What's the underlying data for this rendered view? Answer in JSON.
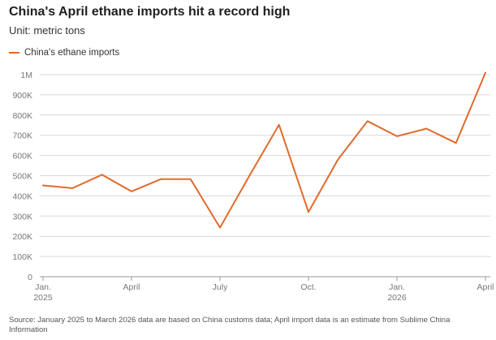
{
  "title": "China's April ethane imports hit a record high",
  "subtitle": "Unit: metric tons",
  "footnote": "Source: January 2025 to March 2026 data are based on China customs data; April import data is an estimate from Sublime China Information",
  "colors": {
    "series": "#e26a2c",
    "grid": "#d9d9d9",
    "axis": "#999999",
    "tick_text": "#777777"
  },
  "chart_data": {
    "type": "line",
    "series": [
      {
        "name": "China's ethane imports",
        "values": [
          452000,
          438000,
          505000,
          422000,
          483000,
          483000,
          243000,
          500000,
          752000,
          320000,
          580000,
          770000,
          695000,
          733000,
          662000,
          1010000
        ]
      }
    ],
    "x": [
      "2025-01",
      "2025-02",
      "2025-03",
      "2025-04",
      "2025-05",
      "2025-06",
      "2025-07",
      "2025-08",
      "2025-09",
      "2025-10",
      "2025-11",
      "2025-12",
      "2026-01",
      "2026-02",
      "2026-03",
      "2026-04"
    ],
    "x_tick_labels": [
      {
        "index": 0,
        "line1": "Jan.",
        "line2": "2025"
      },
      {
        "index": 3,
        "line1": "April",
        "line2": ""
      },
      {
        "index": 6,
        "line1": "July",
        "line2": ""
      },
      {
        "index": 9,
        "line1": "Oct.",
        "line2": ""
      },
      {
        "index": 12,
        "line1": "Jan.",
        "line2": "2026"
      },
      {
        "index": 15,
        "line1": "April",
        "line2": ""
      }
    ],
    "y_ticks": [
      0,
      100000,
      200000,
      300000,
      400000,
      500000,
      600000,
      700000,
      800000,
      900000,
      1000000
    ],
    "y_tick_labels": [
      "0",
      "100K",
      "200K",
      "300K",
      "400K",
      "500K",
      "600K",
      "700K",
      "800K",
      "900K",
      "1M"
    ],
    "ylim": [
      0,
      1000000
    ],
    "grid": true,
    "legend": "top-left",
    "xlabel": "",
    "ylabel": ""
  }
}
